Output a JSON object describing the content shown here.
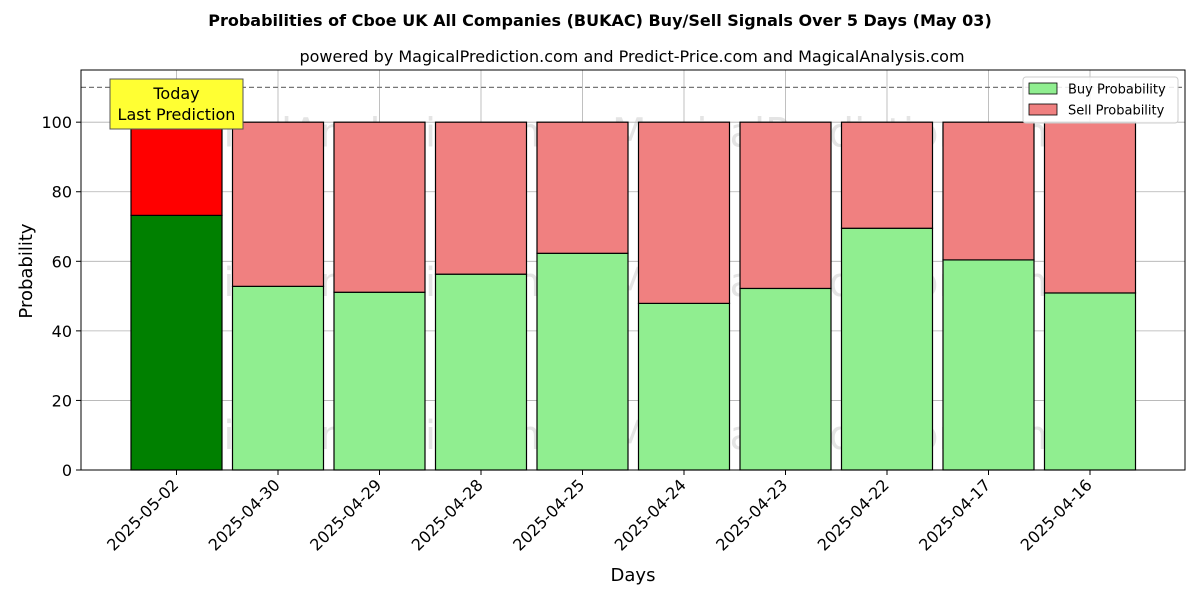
{
  "chart_data": {
    "type": "bar",
    "stacked": true,
    "title": "Probabilities of Cboe UK All Companies (BUKAC) Buy/Sell Signals Over 5 Days (May 03)",
    "subtitle": "powered by MagicalPrediction.com and Predict-Price.com and MagicalAnalysis.com",
    "xlabel": "Days",
    "ylabel": "Probability",
    "ylim": [
      0,
      115
    ],
    "yticks": [
      0,
      20,
      40,
      60,
      80,
      100
    ],
    "reference_line": 110,
    "grid": true,
    "legend_position": "top-right",
    "categories": [
      "2025-05-02",
      "2025-04-30",
      "2025-04-29",
      "2025-04-28",
      "2025-04-25",
      "2025-04-24",
      "2025-04-23",
      "2025-04-22",
      "2025-04-17",
      "2025-04-16"
    ],
    "series": [
      {
        "name": "Buy Probability",
        "color": "#90ee90",
        "highlight_color": "#008000",
        "values": [
          73.2,
          52.8,
          51.1,
          56.3,
          62.3,
          47.9,
          52.2,
          69.5,
          60.4,
          50.9
        ]
      },
      {
        "name": "Sell Probability",
        "color": "#f08080",
        "highlight_color": "#ff0000",
        "values": [
          26.8,
          47.2,
          48.9,
          43.7,
          37.7,
          52.1,
          47.8,
          30.5,
          39.6,
          49.1
        ]
      }
    ],
    "annotation": {
      "lines": [
        "Today",
        "Last Prediction"
      ],
      "background": "#ffff33"
    },
    "watermarks": [
      "MagicalAnalysis.com",
      "MagicalPrediction.com"
    ]
  }
}
